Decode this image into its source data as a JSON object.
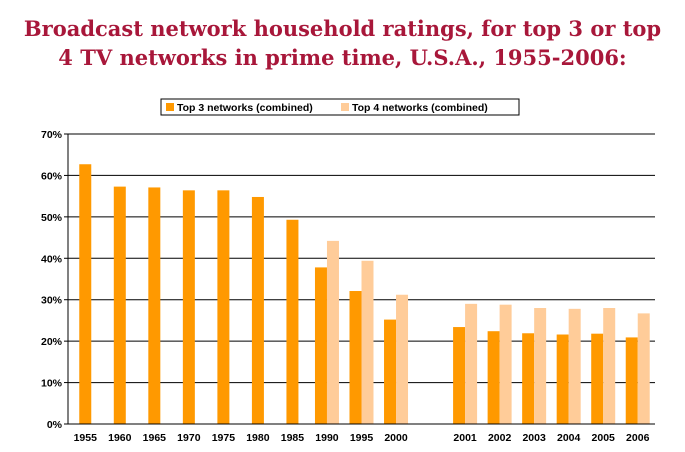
{
  "colors": {
    "title": "#a8173a",
    "top3": "#ff9900",
    "top4": "#ffcc99",
    "grid": "#000000"
  },
  "chart_data": {
    "type": "bar",
    "title_lines": [
      "Broadcast network household ratings, for top 3 or top",
      "4 TV networks in prime time, U.S.A., 1955-2006:"
    ],
    "legend_position": "top-center",
    "grid": true,
    "ylim": [
      0,
      70
    ],
    "yticks": [
      "0%",
      "10%",
      "20%",
      "30%",
      "40%",
      "50%",
      "60%",
      "70%"
    ],
    "categories": [
      "1955",
      "1960",
      "1965",
      "1970",
      "1975",
      "1980",
      "1985",
      "1990",
      "1995",
      "2000",
      "",
      "2001",
      "2002",
      "2003",
      "2004",
      "2005",
      "2006"
    ],
    "series": [
      {
        "name": "Top 3 networks (combined)",
        "values": [
          62.7,
          57.3,
          57.1,
          56.4,
          56.4,
          54.8,
          49.3,
          37.8,
          32.1,
          25.2,
          null,
          23.4,
          22.4,
          21.9,
          21.6,
          21.8,
          20.9
        ]
      },
      {
        "name": "Top 4 networks (combined)",
        "values": [
          null,
          null,
          null,
          null,
          null,
          null,
          null,
          44.2,
          39.4,
          31.2,
          null,
          29.0,
          28.8,
          28.0,
          27.8,
          28.0,
          26.7
        ]
      }
    ]
  }
}
